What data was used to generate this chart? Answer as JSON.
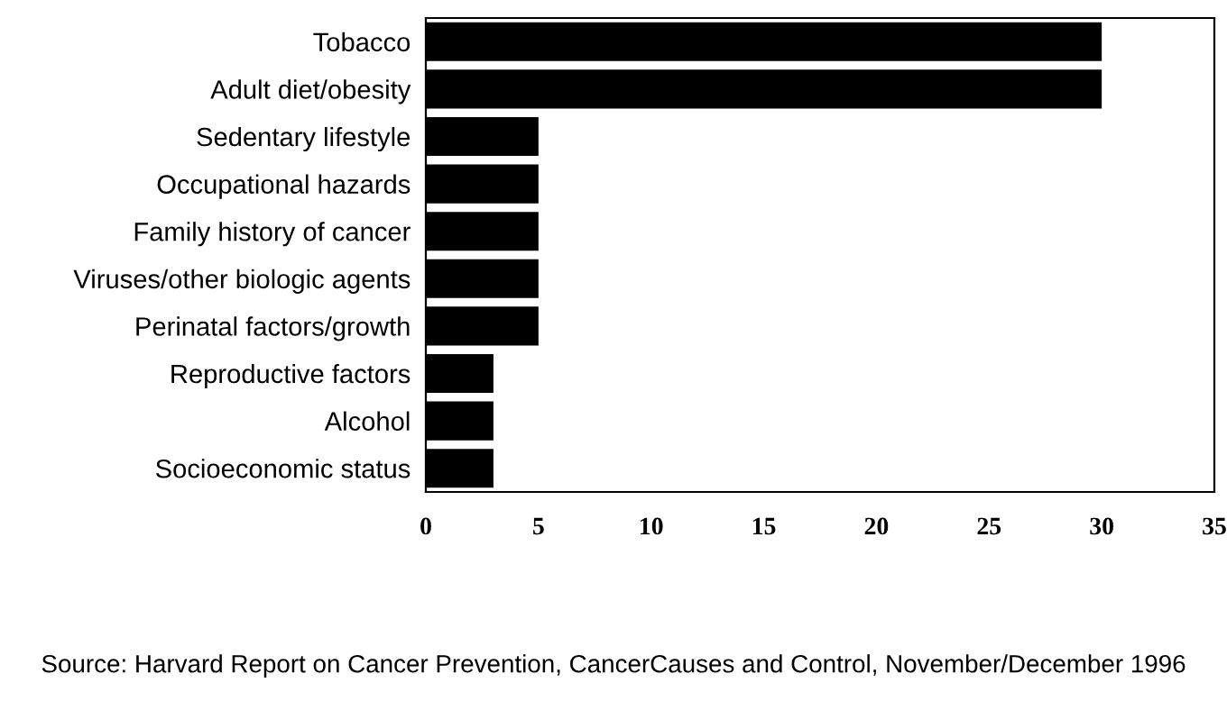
{
  "chart_data": {
    "type": "bar",
    "orientation": "horizontal",
    "categories": [
      "Tobacco",
      "Adult diet/obesity",
      "Sedentary lifestyle",
      "Occupational hazards",
      "Family history of cancer",
      "Viruses/other biologic agents",
      "Perinatal factors/growth",
      "Reproductive factors",
      "Alcohol",
      "Socioeconomic status"
    ],
    "values": [
      30,
      30,
      5,
      5,
      5,
      5,
      5,
      3,
      3,
      3
    ],
    "color": "#000000",
    "xlim": [
      0,
      35
    ],
    "xticks": [
      0,
      5,
      10,
      15,
      20,
      25,
      30,
      35
    ],
    "grid": false,
    "annotations": [
      "Source: Harvard Report on Cancer Prevention, CancerCauses and Control, November/December 1996"
    ]
  }
}
